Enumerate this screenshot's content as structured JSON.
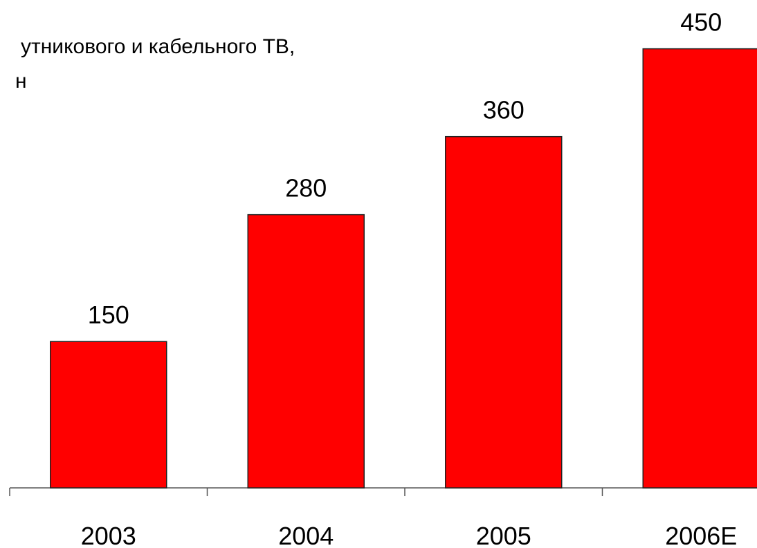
{
  "chart_data": {
    "type": "bar",
    "title_lines": [
      "утникового и кабельного ТВ,",
      "н"
    ],
    "categories": [
      "2003",
      "2004",
      "2005",
      "2006E"
    ],
    "values": [
      150,
      280,
      360,
      450
    ],
    "color": "#ff0000",
    "ylim": [
      0,
      500
    ]
  }
}
